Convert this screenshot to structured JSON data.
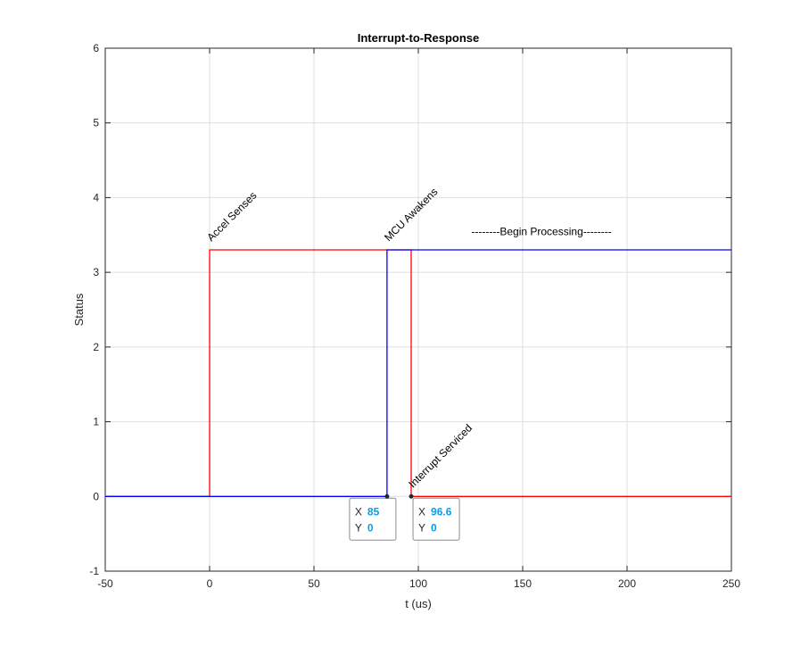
{
  "chart_data": {
    "type": "line",
    "title": "Interrupt-to-Response",
    "xlabel": "t (us)",
    "ylabel": "Status",
    "xlim": [
      -50,
      250
    ],
    "ylim": [
      -1,
      6
    ],
    "x_ticks": [
      -50,
      0,
      50,
      100,
      150,
      200,
      250
    ],
    "y_ticks": [
      -1,
      0,
      1,
      2,
      3,
      4,
      5,
      6
    ],
    "x_tick_labels": [
      "-50",
      "0",
      "50",
      "100",
      "150",
      "200",
      "250"
    ],
    "y_tick_labels": [
      "-1",
      "0",
      "1",
      "2",
      "3",
      "4",
      "5",
      "6"
    ],
    "grid": true,
    "series": [
      {
        "color": "#ff0000",
        "points": [
          [
            -50,
            0
          ],
          [
            0,
            0
          ],
          [
            0,
            3.3
          ],
          [
            96.6,
            3.3
          ],
          [
            96.6,
            0
          ],
          [
            250,
            0
          ]
        ]
      },
      {
        "color": "#0000ff",
        "points": [
          [
            -50,
            0
          ],
          [
            85,
            0
          ],
          [
            85,
            3.3
          ],
          [
            250,
            3.3
          ]
        ]
      }
    ],
    "annotations": [
      {
        "text": "Accel Senses",
        "x": 0,
        "y": 3.3,
        "rotation": -45
      },
      {
        "text": "MCU Awakens",
        "x": 85,
        "y": 3.3,
        "rotation": -45
      },
      {
        "text": "--------Begin Processing--------",
        "x": 159,
        "y": 3.5,
        "rotation": 0
      },
      {
        "text": "Interrupt Serviced",
        "x": 96.6,
        "y": 0,
        "rotation": -45
      }
    ],
    "datatips": [
      {
        "x_label": "X",
        "x_value": "85",
        "y_label": "Y",
        "y_value": "0",
        "x": 85,
        "y": 0,
        "side": "left"
      },
      {
        "x_label": "X",
        "x_value": "96.6",
        "y_label": "Y",
        "y_value": "0",
        "x": 96.6,
        "y": 0,
        "side": "right"
      }
    ]
  }
}
